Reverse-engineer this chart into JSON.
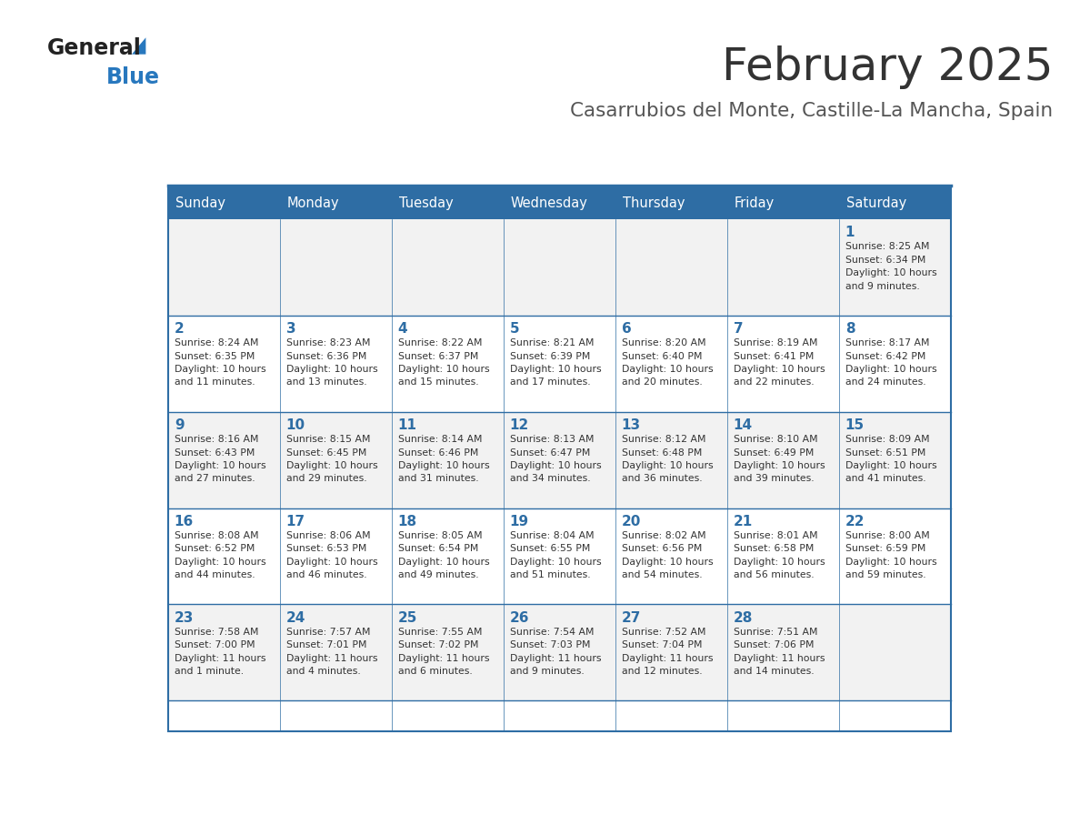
{
  "title": "February 2025",
  "subtitle": "Casarrubios del Monte, Castille-La Mancha, Spain",
  "days_of_week": [
    "Sunday",
    "Monday",
    "Tuesday",
    "Wednesday",
    "Thursday",
    "Friday",
    "Saturday"
  ],
  "header_bg": "#2E6DA4",
  "header_text": "#FFFFFF",
  "row_bg_odd": "#F2F2F2",
  "row_bg_even": "#FFFFFF",
  "border_color": "#2E6DA4",
  "title_color": "#333333",
  "subtitle_color": "#555555",
  "day_number_color": "#2E6DA4",
  "cell_text_color": "#333333",
  "logo_general_color": "#222222",
  "logo_blue_color": "#2878BE",
  "weeks": [
    [
      {
        "day": null,
        "info": null
      },
      {
        "day": null,
        "info": null
      },
      {
        "day": null,
        "info": null
      },
      {
        "day": null,
        "info": null
      },
      {
        "day": null,
        "info": null
      },
      {
        "day": null,
        "info": null
      },
      {
        "day": 1,
        "info": "Sunrise: 8:25 AM\nSunset: 6:34 PM\nDaylight: 10 hours\nand 9 minutes."
      }
    ],
    [
      {
        "day": 2,
        "info": "Sunrise: 8:24 AM\nSunset: 6:35 PM\nDaylight: 10 hours\nand 11 minutes."
      },
      {
        "day": 3,
        "info": "Sunrise: 8:23 AM\nSunset: 6:36 PM\nDaylight: 10 hours\nand 13 minutes."
      },
      {
        "day": 4,
        "info": "Sunrise: 8:22 AM\nSunset: 6:37 PM\nDaylight: 10 hours\nand 15 minutes."
      },
      {
        "day": 5,
        "info": "Sunrise: 8:21 AM\nSunset: 6:39 PM\nDaylight: 10 hours\nand 17 minutes."
      },
      {
        "day": 6,
        "info": "Sunrise: 8:20 AM\nSunset: 6:40 PM\nDaylight: 10 hours\nand 20 minutes."
      },
      {
        "day": 7,
        "info": "Sunrise: 8:19 AM\nSunset: 6:41 PM\nDaylight: 10 hours\nand 22 minutes."
      },
      {
        "day": 8,
        "info": "Sunrise: 8:17 AM\nSunset: 6:42 PM\nDaylight: 10 hours\nand 24 minutes."
      }
    ],
    [
      {
        "day": 9,
        "info": "Sunrise: 8:16 AM\nSunset: 6:43 PM\nDaylight: 10 hours\nand 27 minutes."
      },
      {
        "day": 10,
        "info": "Sunrise: 8:15 AM\nSunset: 6:45 PM\nDaylight: 10 hours\nand 29 minutes."
      },
      {
        "day": 11,
        "info": "Sunrise: 8:14 AM\nSunset: 6:46 PM\nDaylight: 10 hours\nand 31 minutes."
      },
      {
        "day": 12,
        "info": "Sunrise: 8:13 AM\nSunset: 6:47 PM\nDaylight: 10 hours\nand 34 minutes."
      },
      {
        "day": 13,
        "info": "Sunrise: 8:12 AM\nSunset: 6:48 PM\nDaylight: 10 hours\nand 36 minutes."
      },
      {
        "day": 14,
        "info": "Sunrise: 8:10 AM\nSunset: 6:49 PM\nDaylight: 10 hours\nand 39 minutes."
      },
      {
        "day": 15,
        "info": "Sunrise: 8:09 AM\nSunset: 6:51 PM\nDaylight: 10 hours\nand 41 minutes."
      }
    ],
    [
      {
        "day": 16,
        "info": "Sunrise: 8:08 AM\nSunset: 6:52 PM\nDaylight: 10 hours\nand 44 minutes."
      },
      {
        "day": 17,
        "info": "Sunrise: 8:06 AM\nSunset: 6:53 PM\nDaylight: 10 hours\nand 46 minutes."
      },
      {
        "day": 18,
        "info": "Sunrise: 8:05 AM\nSunset: 6:54 PM\nDaylight: 10 hours\nand 49 minutes."
      },
      {
        "day": 19,
        "info": "Sunrise: 8:04 AM\nSunset: 6:55 PM\nDaylight: 10 hours\nand 51 minutes."
      },
      {
        "day": 20,
        "info": "Sunrise: 8:02 AM\nSunset: 6:56 PM\nDaylight: 10 hours\nand 54 minutes."
      },
      {
        "day": 21,
        "info": "Sunrise: 8:01 AM\nSunset: 6:58 PM\nDaylight: 10 hours\nand 56 minutes."
      },
      {
        "day": 22,
        "info": "Sunrise: 8:00 AM\nSunset: 6:59 PM\nDaylight: 10 hours\nand 59 minutes."
      }
    ],
    [
      {
        "day": 23,
        "info": "Sunrise: 7:58 AM\nSunset: 7:00 PM\nDaylight: 11 hours\nand 1 minute."
      },
      {
        "day": 24,
        "info": "Sunrise: 7:57 AM\nSunset: 7:01 PM\nDaylight: 11 hours\nand 4 minutes."
      },
      {
        "day": 25,
        "info": "Sunrise: 7:55 AM\nSunset: 7:02 PM\nDaylight: 11 hours\nand 6 minutes."
      },
      {
        "day": 26,
        "info": "Sunrise: 7:54 AM\nSunset: 7:03 PM\nDaylight: 11 hours\nand 9 minutes."
      },
      {
        "day": 27,
        "info": "Sunrise: 7:52 AM\nSunset: 7:04 PM\nDaylight: 11 hours\nand 12 minutes."
      },
      {
        "day": 28,
        "info": "Sunrise: 7:51 AM\nSunset: 7:06 PM\nDaylight: 11 hours\nand 14 minutes."
      },
      {
        "day": null,
        "info": null
      }
    ]
  ]
}
